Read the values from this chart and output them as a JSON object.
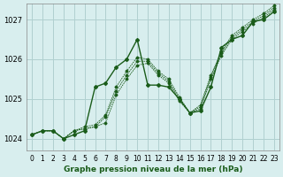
{
  "xlabel": "Graphe pression niveau de la mer (hPa)",
  "background_color": "#d8eeee",
  "grid_color": "#b0d0d0",
  "line_color": "#1a5c1a",
  "ylim": [
    1023.7,
    1027.4
  ],
  "xlim": [
    -0.5,
    23.5
  ],
  "yticks": [
    1024,
    1025,
    1026,
    1027
  ],
  "xticks": [
    0,
    1,
    2,
    3,
    4,
    5,
    6,
    7,
    8,
    9,
    10,
    11,
    12,
    13,
    14,
    15,
    16,
    17,
    18,
    19,
    20,
    21,
    22,
    23
  ],
  "series": [
    [
      1024.1,
      1024.2,
      1024.2,
      1024.0,
      1024.1,
      1024.2,
      1025.3,
      1025.4,
      1025.8,
      1026.0,
      1026.5,
      1025.35,
      1025.35,
      1025.3,
      1025.0,
      1024.65,
      1024.7,
      1025.3,
      1026.3,
      1026.5,
      1026.6,
      1026.95,
      1027.0,
      1027.2
    ],
    [
      1024.1,
      1024.2,
      1024.2,
      1024.0,
      1024.2,
      1024.25,
      1024.3,
      1024.4,
      1025.1,
      1025.5,
      1025.85,
      1025.9,
      1025.6,
      1025.4,
      1024.95,
      1024.65,
      1024.75,
      1025.5,
      1026.1,
      1026.5,
      1026.7,
      1026.9,
      1027.05,
      1027.25
    ],
    [
      1024.1,
      1024.2,
      1024.2,
      1024.0,
      1024.2,
      1024.25,
      1024.3,
      1024.55,
      1025.2,
      1025.6,
      1025.95,
      1025.95,
      1025.65,
      1025.45,
      1025.0,
      1024.65,
      1024.8,
      1025.55,
      1026.15,
      1026.55,
      1026.75,
      1026.95,
      1027.1,
      1027.3
    ],
    [
      1024.1,
      1024.2,
      1024.2,
      1024.0,
      1024.2,
      1024.3,
      1024.35,
      1024.6,
      1025.3,
      1025.7,
      1026.05,
      1026.0,
      1025.7,
      1025.5,
      1025.05,
      1024.65,
      1024.85,
      1025.6,
      1026.2,
      1026.6,
      1026.8,
      1027.0,
      1027.15,
      1027.35
    ]
  ]
}
